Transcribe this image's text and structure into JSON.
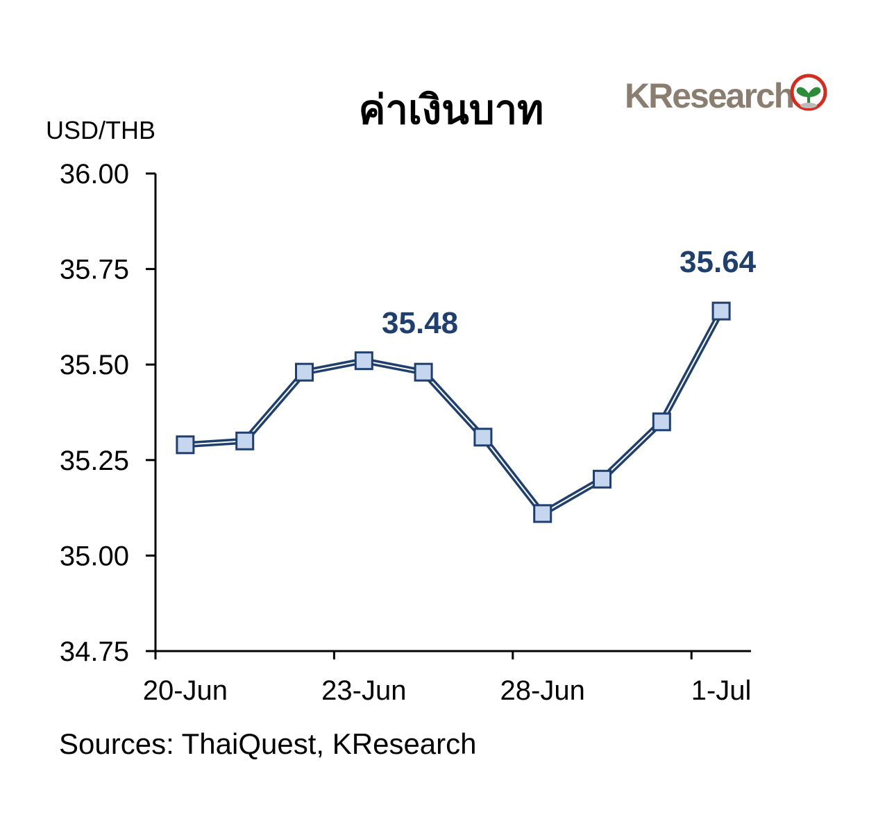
{
  "chart_data": {
    "type": "line",
    "title": "ค่าเงินบาท",
    "logo": "KResearch",
    "y_axis_label": "USD/THB",
    "source": "Sources: ThaiQuest, KResearch",
    "categories": [
      "20-Jun",
      null,
      null,
      "23-Jun",
      null,
      null,
      "28-Jun",
      null,
      null,
      "1-Jul"
    ],
    "series": [
      {
        "name": "USD/THB",
        "color": "#1f3f6e",
        "marker_color": "#c5d6ee",
        "values": [
          35.29,
          35.3,
          35.48,
          35.51,
          35.48,
          35.31,
          35.11,
          35.2,
          35.35,
          35.64
        ],
        "value_labels": [
          null,
          null,
          null,
          null,
          "35.48",
          null,
          null,
          null,
          null,
          "35.64"
        ]
      }
    ],
    "ylim": [
      34.75,
      36.0
    ],
    "yticks": [
      {
        "value": 34.75,
        "label": "34.75"
      },
      {
        "value": 35.0,
        "label": "35.00"
      },
      {
        "value": 35.25,
        "label": "35.25"
      },
      {
        "value": 35.5,
        "label": "35.50"
      },
      {
        "value": 35.75,
        "label": "35.75"
      },
      {
        "value": 36.0,
        "label": "36.00"
      }
    ],
    "grid": false
  }
}
